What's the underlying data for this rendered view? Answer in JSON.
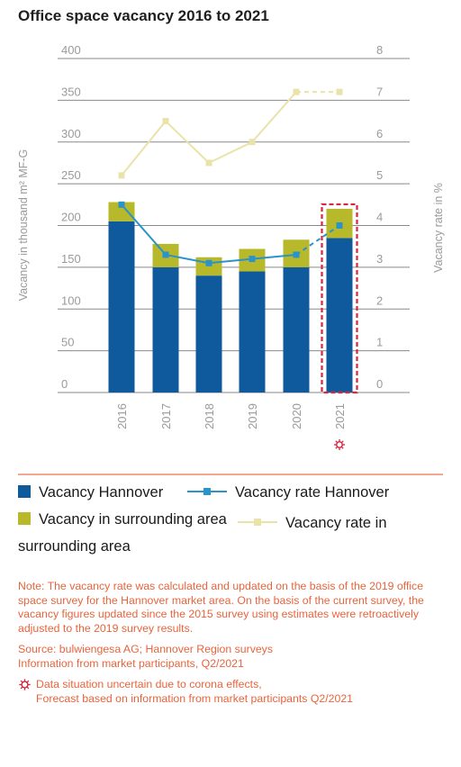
{
  "title": "Office space vacancy 2016 to 2021",
  "chart_data": {
    "type": "bar",
    "categories": [
      "2016",
      "2017",
      "2018",
      "2019",
      "2020",
      "2021"
    ],
    "series": [
      {
        "name": "Vacancy Hannover",
        "kind": "bar",
        "axis": "left",
        "values": [
          205,
          150,
          140,
          145,
          150,
          185
        ],
        "color": "#0f5a9c"
      },
      {
        "name": "Vacancy in surrounding area",
        "kind": "bar",
        "axis": "left",
        "values": [
          23,
          28,
          22,
          27,
          33,
          35
        ],
        "color": "#b8b92a"
      },
      {
        "name": "Vacancy rate Hannover",
        "kind": "line",
        "axis": "right",
        "values": [
          4.5,
          3.3,
          3.1,
          3.2,
          3.3,
          4.0
        ],
        "color": "#2a93c9",
        "dashed_last_segment": true
      },
      {
        "name": "Vacancy rate in surrounding area",
        "kind": "line",
        "axis": "right",
        "values": [
          5.2,
          6.5,
          5.5,
          6.0,
          7.2,
          7.2
        ],
        "color": "#e9e3a9",
        "dashed_last_segment": true
      }
    ],
    "ylabel": "Vacancy in thousand m² MF-G",
    "y2label": "Vacancy rate in %",
    "yticks": [
      "0",
      "50",
      "100",
      "150",
      "200",
      "250",
      "300",
      "350",
      "400"
    ],
    "y2ticks": [
      "0",
      "1",
      "2",
      "3",
      "4",
      "5",
      "6",
      "7",
      "8"
    ],
    "ylim": [
      0,
      400
    ],
    "y2lim": [
      0,
      8
    ],
    "grid": true,
    "legend_placement": "bottom",
    "highlighted_category": "2021",
    "highlight_color": "#d7263d",
    "uncertain_marker_category": "2021"
  },
  "legend": {
    "vacancy_hannover": "Vacancy Hannover",
    "vacancy_rate_hannover": "Vacancy rate Hannover",
    "vacancy_surrounding": "Vacancy in surrounding area",
    "vacancy_rate_surrounding": "Vacancy rate in surrounding area"
  },
  "notes": {
    "note": "Note: The vacancy rate was calculated and updated on the basis of the 2019 office space survey for the Hannover market area. On the basis of the current survey, the vacancy figures updated since the 2015 survey using estimates were retroactively adjusted to the 2019 survey results.",
    "source_line1": "Source: bulwiengesa AG; Hannover Region surveys",
    "source_line2": "Information from market participants, Q2/2021",
    "corona_line1": "Data situation uncertain due to corona effects,",
    "corona_line2": "Forecast based on information from market participants Q2/2021"
  },
  "colors": {
    "accent_line": "#f08a6a",
    "grid": "#8a8a8a",
    "axis_text": "#9a9a9a",
    "note_text": "#e8643c",
    "corona_icon": "#d7263d"
  }
}
